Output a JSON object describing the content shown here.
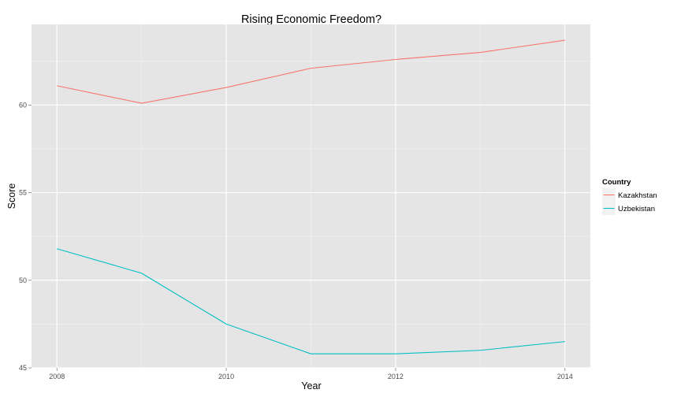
{
  "chart_data": {
    "type": "line",
    "title": "Rising Economic Freedom?",
    "xlabel": "Year",
    "ylabel": "Score",
    "x": [
      2008,
      2009,
      2010,
      2011,
      2012,
      2013,
      2014
    ],
    "series": [
      {
        "name": "Kazakhstan",
        "color": "#F8766D",
        "values": [
          61.1,
          60.1,
          61.0,
          62.1,
          62.6,
          63.0,
          63.7
        ]
      },
      {
        "name": "Uzbekistan",
        "color": "#00BFC4",
        "values": [
          51.8,
          50.4,
          47.5,
          45.8,
          45.8,
          46.0,
          46.5
        ]
      }
    ],
    "x_ticks": [
      2008,
      2010,
      2012,
      2014
    ],
    "x_tick_labels": [
      "2008",
      "2010",
      "2012",
      "2014"
    ],
    "y_ticks": [
      45,
      50,
      55,
      60
    ],
    "y_tick_labels": [
      "45",
      "50",
      "55",
      "60"
    ],
    "xlim": [
      2007.7,
      2014.3
    ],
    "ylim": [
      45.0,
      64.6
    ],
    "grid": true,
    "legend": {
      "title": "Country",
      "position": "right"
    }
  }
}
